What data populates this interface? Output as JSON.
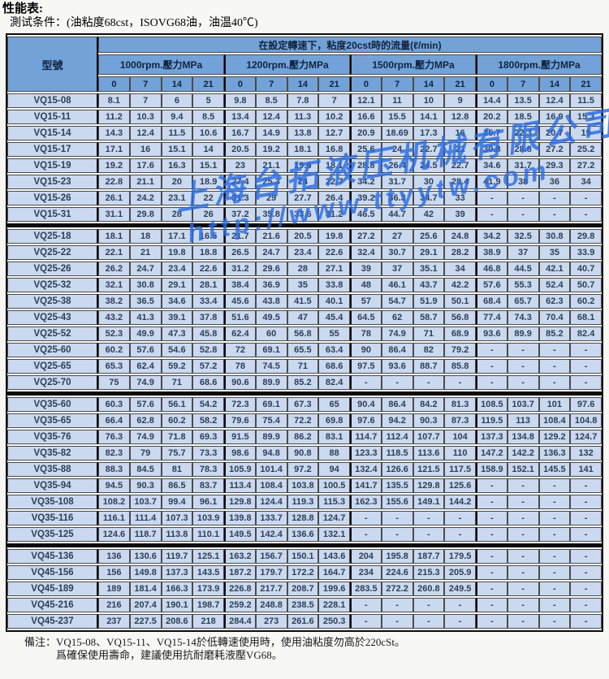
{
  "page": {
    "title": "性能表:",
    "conditions": "測试条件：(油粘度68cst，ISOVG68油，油温40℃)"
  },
  "table": {
    "flow_header": "在設定轉速下，粘度20cst時的流量(ℓ/min)",
    "model_header": "型號",
    "rpm_groups": [
      "1000rpm.壓力MPa",
      "1200rpm.壓力MPa",
      "1500rpm.壓力MPa",
      "1800rpm.壓力MPa"
    ],
    "pressure_cols": [
      "0",
      "7",
      "14",
      "21"
    ],
    "blocks": [
      {
        "name": "VQ15",
        "rows": [
          {
            "model": "VQ15-08",
            "values": [
              "8.1",
              "7",
              "6",
              "5",
              "9.8",
              "8.5",
              "7.8",
              "7",
              "12.1",
              "11",
              "10",
              "9",
              "14.4",
              "13.5",
              "12.4",
              "11.5"
            ]
          },
          {
            "model": "VQ15-11",
            "values": [
              "11.2",
              "10.3",
              "9.4",
              "8.5",
              "13.4",
              "12.4",
              "11.3",
              "10.2",
              "16.6",
              "15.5",
              "14.1",
              "12.8",
              "20.2",
              "18.5",
              "16.9",
              "15.3"
            ]
          },
          {
            "model": "VQ15-14",
            "values": [
              "14.3",
              "12.4",
              "11.5",
              "10.6",
              "16.7",
              "14.9",
              "13.8",
              "12.7",
              "20.9",
              "18.69",
              "17.3",
              "16",
              "25.7",
              "22.3",
              "20.7",
              "19"
            ]
          },
          {
            "model": "VQ15-17",
            "values": [
              "17.1",
              "16",
              "15.1",
              "14",
              "20.5",
              "19.2",
              "18.1",
              "16.8",
              "25.6",
              "24",
              "22.7",
              "21",
              "30.8",
              "28.8",
              "27.2",
              "25.2"
            ]
          },
          {
            "model": "VQ15-19",
            "values": [
              "19.2",
              "17.6",
              "16.3",
              "15.1",
              "23",
              "21.1",
              "19.6",
              "18.1",
              "28.8",
              "26.4",
              "24.5",
              "22.7",
              "34.6",
              "31.7",
              "29.3",
              "27.2"
            ]
          },
          {
            "model": "VQ15-23",
            "values": [
              "22.8",
              "21.1",
              "20",
              "18.9",
              "27.4",
              "25.3",
              "24",
              "22.7",
              "34.2",
              "31.7",
              "30",
              "28.4",
              "41.9",
              "38",
              "36",
              "34"
            ]
          },
          {
            "model": "VQ15-26",
            "values": [
              "26.1",
              "24.2",
              "23.1",
              "22",
              "31.3",
              "29",
              "27.7",
              "26.4",
              "39.2",
              "36.3",
              "34.7",
              "33",
              "-",
              "-",
              "-",
              "-"
            ]
          },
          {
            "model": "VQ15-31",
            "values": [
              "31.1",
              "29.8",
              "28",
              "26",
              "37.2",
              "35.8",
              "33.6",
              "31.2",
              "46.5",
              "44.7",
              "42",
              "39",
              "-",
              "-",
              "-",
              "-"
            ]
          }
        ]
      },
      {
        "name": "VQ25",
        "rows": [
          {
            "model": "VQ25-18",
            "values": [
              "18.1",
              "18",
              "17.1",
              "16.5",
              "21.7",
              "21.6",
              "20.5",
              "19.8",
              "27.2",
              "27",
              "25.6",
              "24.8",
              "34.2",
              "32.5",
              "30.8",
              "29.8"
            ]
          },
          {
            "model": "VQ25-22",
            "values": [
              "22.1",
              "21",
              "19.8",
              "18.8",
              "26.5",
              "24.7",
              "23.4",
              "22.6",
              "32.4",
              "30.7",
              "29.1",
              "28.2",
              "38.9",
              "37",
              "35",
              "33.9"
            ]
          },
          {
            "model": "VQ25-26",
            "values": [
              "26.2",
              "24.7",
              "23.4",
              "22.6",
              "31.2",
              "29.6",
              "28",
              "27.1",
              "39",
              "37",
              "35.1",
              "34",
              "46.8",
              "44.5",
              "42.1",
              "40.7"
            ]
          },
          {
            "model": "VQ25-32",
            "values": [
              "32.1",
              "30.8",
              "29.1",
              "28.1",
              "38.4",
              "36.9",
              "35",
              "33.8",
              "48",
              "46.1",
              "43.7",
              "42.2",
              "57.6",
              "55.3",
              "52.4",
              "50.7"
            ]
          },
          {
            "model": "VQ25-38",
            "values": [
              "38.2",
              "36.5",
              "34.6",
              "33.4",
              "45.6",
              "43.8",
              "41.5",
              "40.1",
              "57",
              "54.7",
              "51.9",
              "50.1",
              "68.4",
              "65.7",
              "62.3",
              "60.2"
            ]
          },
          {
            "model": "VQ25-43",
            "values": [
              "43.2",
              "41.3",
              "39.1",
              "37.8",
              "51.6",
              "49.5",
              "47",
              "45.4",
              "64.5",
              "62",
              "58.7",
              "56.8",
              "77.4",
              "74.3",
              "70.4",
              "68.1"
            ]
          },
          {
            "model": "VQ25-52",
            "values": [
              "52.3",
              "49.9",
              "47.3",
              "45.8",
              "62.4",
              "60",
              "56.8",
              "55",
              "78",
              "74.9",
              "71",
              "68.9",
              "93.6",
              "89.9",
              "85.2",
              "82.4"
            ]
          },
          {
            "model": "VQ25-60",
            "values": [
              "60.2",
              "57.6",
              "54.6",
              "52.8",
              "72",
              "69.1",
              "65.5",
              "63.4",
              "90",
              "86.4",
              "82",
              "79.2",
              "-",
              "-",
              "-",
              "-"
            ]
          },
          {
            "model": "VQ25-65",
            "values": [
              "65.3",
              "62.4",
              "59.2",
              "57.2",
              "78",
              "74.5",
              "71",
              "68.6",
              "97.5",
              "93.6",
              "88.7",
              "85.8",
              "-",
              "-",
              "-",
              "-"
            ]
          },
          {
            "model": "VQ25-70",
            "values": [
              "75",
              "74.9",
              "71",
              "68.6",
              "90.6",
              "89.9",
              "85.2",
              "82.4",
              "-",
              "-",
              "-",
              "-",
              "-",
              "-",
              "-",
              "-"
            ]
          }
        ]
      },
      {
        "name": "VQ35",
        "rows": [
          {
            "model": "VQ35-60",
            "values": [
              "60.3",
              "57.6",
              "56.1",
              "54.2",
              "72.3",
              "69.1",
              "67.3",
              "65",
              "90.4",
              "86.4",
              "84.2",
              "81.3",
              "108.5",
              "103.7",
              "101",
              "97.6"
            ]
          },
          {
            "model": "VQ35-65",
            "values": [
              "66.4",
              "62.8",
              "60.2",
              "58.2",
              "79.6",
              "75.4",
              "72.2",
              "69.8",
              "97.6",
              "94.2",
              "90.3",
              "87.3",
              "119.5",
              "113",
              "108.4",
              "104.8"
            ]
          },
          {
            "model": "VQ35-76",
            "values": [
              "76.3",
              "74.9",
              "71.8",
              "69.3",
              "91.5",
              "89.9",
              "86.2",
              "83.1",
              "114.7",
              "112.4",
              "107.7",
              "104",
              "137.3",
              "134.8",
              "129.2",
              "124.7"
            ]
          },
          {
            "model": "VQ35-82",
            "values": [
              "82.3",
              "79",
              "75.7",
              "73.3",
              "98.6",
              "94.8",
              "90.8",
              "88",
              "123.3",
              "118.5",
              "113.6",
              "110",
              "147.2",
              "142.2",
              "136.3",
              "132"
            ]
          },
          {
            "model": "VQ35-88",
            "values": [
              "88.3",
              "84.5",
              "81",
              "78.3",
              "105.9",
              "101.4",
              "97.2",
              "94",
              "132.4",
              "126.6",
              "121.5",
              "117.5",
              "158.9",
              "152.1",
              "145.5",
              "141"
            ]
          },
          {
            "model": "VQ35-94",
            "values": [
              "94.5",
              "90.3",
              "86.5",
              "83.7",
              "113.4",
              "108.4",
              "103.8",
              "100.5",
              "141.7",
              "135.5",
              "129.8",
              "125.6",
              "-",
              "-",
              "-",
              "-"
            ]
          },
          {
            "model": "VQ35-108",
            "values": [
              "108.2",
              "103.7",
              "99.4",
              "96.1",
              "129.8",
              "124.4",
              "119.3",
              "115.3",
              "162.3",
              "155.6",
              "149.1",
              "144.2",
              "-",
              "-",
              "-",
              "-"
            ]
          },
          {
            "model": "VQ35-116",
            "values": [
              "116.1",
              "111.4",
              "107.3",
              "103.9",
              "139.8",
              "133.7",
              "128.8",
              "124.7",
              "-",
              "-",
              "-",
              "-",
              "-",
              "-",
              "-",
              "-"
            ]
          },
          {
            "model": "VQ35-125",
            "values": [
              "124.6",
              "118.7",
              "113.8",
              "110.1",
              "149.5",
              "142.4",
              "136.6",
              "132.1",
              "-",
              "-",
              "-",
              "-",
              "-",
              "-",
              "-",
              "-"
            ]
          }
        ]
      },
      {
        "name": "VQ45",
        "rows": [
          {
            "model": "VQ45-136",
            "values": [
              "136",
              "130.6",
              "119.7",
              "125.1",
              "163.2",
              "156.7",
              "150.1",
              "143.6",
              "204",
              "195.8",
              "187.7",
              "179.5",
              "-",
              "-",
              "-",
              "-"
            ]
          },
          {
            "model": "VQ45-156",
            "values": [
              "156",
              "149.8",
              "137.3",
              "143.5",
              "187.2",
              "179.7",
              "172.2",
              "164.7",
              "234",
              "224.6",
              "215.3",
              "205.9",
              "-",
              "-",
              "-",
              "-"
            ]
          },
          {
            "model": "VQ45-189",
            "values": [
              "189",
              "181.4",
              "166.3",
              "173.9",
              "226.8",
              "217.7",
              "208.7",
              "199.6",
              "283.5",
              "272.2",
              "260.8",
              "249.5",
              "-",
              "-",
              "-",
              "-"
            ]
          },
          {
            "model": "VQ45-216",
            "values": [
              "216",
              "207.4",
              "190.1",
              "198.7",
              "259.2",
              "248.8",
              "238.5",
              "228.1",
              "-",
              "-",
              "-",
              "-",
              "-",
              "-",
              "-",
              "-"
            ]
          },
          {
            "model": "VQ45-237",
            "values": [
              "237",
              "227.5",
              "208.6",
              "218",
              "284.4",
              "273",
              "261.6",
              "250.3",
              "-",
              "-",
              "-",
              "-",
              "-",
              "-",
              "-",
              "-"
            ]
          }
        ]
      }
    ]
  },
  "note": {
    "label": "備注：",
    "line1": "VQ15-08、VQ15-11、VQ15-14於低轉速使用時，使用油粘度勿高於220cSt。",
    "line2": "爲確保使用壽命，建議使用抗耐磨耗液壓VG68。"
  },
  "watermark": {
    "company": "上海台拓液压机械有限公司",
    "url": "http://www.ttyytw.com"
  },
  "colors": {
    "header_bg": "#73a2d8",
    "cell_bg": "#cad9f0",
    "thick_border": "#0c0c0c",
    "thin_border": "#4b4b4b",
    "header_text": "#0f2440",
    "cell_text": "#2e3e55",
    "watermark_blue": "#2b6de0",
    "page_bg": "#f7f7f4"
  }
}
